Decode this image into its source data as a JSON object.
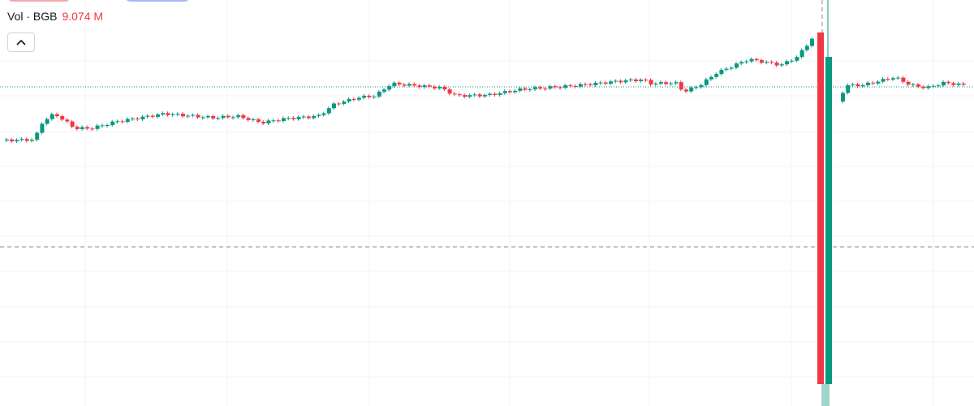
{
  "legend": {
    "label": "Vol · BGB",
    "value": "9.074 M"
  }
}
